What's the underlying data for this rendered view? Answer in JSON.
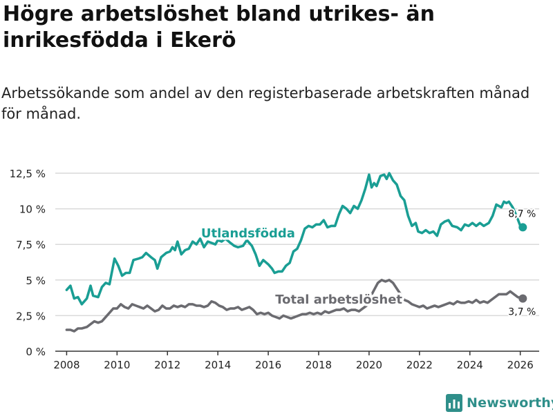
{
  "title": "Högre arbetslöshet bland utrikes- än inrikesfödda i Ekerö",
  "subtitle": "Arbetssökande som andel av den registerbaserade arbetskraften månad för månad.",
  "brand": "Newsworthy",
  "colors": {
    "utlandsfodda": "#1a9e94",
    "total": "#6b6b70",
    "grid": "#d9d9d9",
    "axis": "#333333",
    "brand": "#2f8f8a"
  },
  "chart_data": {
    "type": "line",
    "x_unit": "year",
    "xlim": [
      2007.55,
      2026.75
    ],
    "ylim": [
      0,
      12.5
    ],
    "yticks": [
      {
        "value": 0,
        "label": "0 %"
      },
      {
        "value": 2.5,
        "label": "2,5 %"
      },
      {
        "value": 5,
        "label": "5 %"
      },
      {
        "value": 7.5,
        "label": "7,5 %"
      },
      {
        "value": 10,
        "label": "10 %"
      },
      {
        "value": 12.5,
        "label": "12,5 %"
      }
    ],
    "xticks": [
      {
        "value": 2008,
        "label": "2008"
      },
      {
        "value": 2010,
        "label": "2010"
      },
      {
        "value": 2012,
        "label": "2012"
      },
      {
        "value": 2014,
        "label": "2014"
      },
      {
        "value": 2016,
        "label": "2016"
      },
      {
        "value": 2018,
        "label": "2018"
      },
      {
        "value": 2020,
        "label": "2020"
      },
      {
        "value": 2022,
        "label": "2022"
      },
      {
        "value": 2024,
        "label": "2024"
      },
      {
        "value": 2026,
        "label": "2026"
      }
    ],
    "series": [
      {
        "name": "Utlandsfödda",
        "color": "#1a9e94",
        "end_label": "8,7 %",
        "points": [
          [
            2008.0,
            4.3
          ],
          [
            2008.15,
            4.6
          ],
          [
            2008.3,
            3.7
          ],
          [
            2008.45,
            3.8
          ],
          [
            2008.6,
            3.3
          ],
          [
            2008.8,
            3.7
          ],
          [
            2008.95,
            4.6
          ],
          [
            2009.05,
            3.9
          ],
          [
            2009.25,
            3.8
          ],
          [
            2009.4,
            4.5
          ],
          [
            2009.55,
            4.8
          ],
          [
            2009.7,
            4.7
          ],
          [
            2009.9,
            6.5
          ],
          [
            2010.05,
            6.0
          ],
          [
            2010.2,
            5.3
          ],
          [
            2010.35,
            5.5
          ],
          [
            2010.5,
            5.5
          ],
          [
            2010.65,
            6.4
          ],
          [
            2010.85,
            6.5
          ],
          [
            2011.0,
            6.6
          ],
          [
            2011.15,
            6.9
          ],
          [
            2011.35,
            6.6
          ],
          [
            2011.5,
            6.4
          ],
          [
            2011.6,
            5.8
          ],
          [
            2011.75,
            6.6
          ],
          [
            2011.95,
            6.9
          ],
          [
            2012.1,
            7.0
          ],
          [
            2012.2,
            7.3
          ],
          [
            2012.3,
            7.1
          ],
          [
            2012.4,
            7.7
          ],
          [
            2012.55,
            6.8
          ],
          [
            2012.7,
            7.1
          ],
          [
            2012.85,
            7.2
          ],
          [
            2013.0,
            7.7
          ],
          [
            2013.15,
            7.5
          ],
          [
            2013.3,
            7.9
          ],
          [
            2013.45,
            7.3
          ],
          [
            2013.6,
            7.7
          ],
          [
            2013.75,
            7.6
          ],
          [
            2013.9,
            7.5
          ],
          [
            2014.0,
            7.8
          ],
          [
            2014.15,
            7.7
          ],
          [
            2014.3,
            7.9
          ],
          [
            2014.5,
            7.6
          ],
          [
            2014.65,
            7.4
          ],
          [
            2014.8,
            7.3
          ],
          [
            2015.0,
            7.4
          ],
          [
            2015.15,
            7.8
          ],
          [
            2015.35,
            7.4
          ],
          [
            2015.5,
            6.8
          ],
          [
            2015.65,
            6.0
          ],
          [
            2015.8,
            6.4
          ],
          [
            2016.0,
            6.1
          ],
          [
            2016.15,
            5.8
          ],
          [
            2016.25,
            5.5
          ],
          [
            2016.4,
            5.6
          ],
          [
            2016.55,
            5.6
          ],
          [
            2016.7,
            6.0
          ],
          [
            2016.85,
            6.2
          ],
          [
            2017.0,
            7.0
          ],
          [
            2017.15,
            7.2
          ],
          [
            2017.3,
            7.8
          ],
          [
            2017.45,
            8.6
          ],
          [
            2017.6,
            8.8
          ],
          [
            2017.75,
            8.7
          ],
          [
            2017.9,
            8.9
          ],
          [
            2018.05,
            8.9
          ],
          [
            2018.2,
            9.2
          ],
          [
            2018.35,
            8.7
          ],
          [
            2018.5,
            8.8
          ],
          [
            2018.65,
            8.8
          ],
          [
            2018.8,
            9.6
          ],
          [
            2018.95,
            10.2
          ],
          [
            2019.1,
            10.0
          ],
          [
            2019.25,
            9.7
          ],
          [
            2019.4,
            10.2
          ],
          [
            2019.55,
            10.0
          ],
          [
            2019.7,
            10.6
          ],
          [
            2019.85,
            11.4
          ],
          [
            2020.0,
            12.4
          ],
          [
            2020.1,
            11.5
          ],
          [
            2020.2,
            11.8
          ],
          [
            2020.3,
            11.6
          ],
          [
            2020.45,
            12.3
          ],
          [
            2020.6,
            12.4
          ],
          [
            2020.7,
            12.1
          ],
          [
            2020.8,
            12.5
          ],
          [
            2020.95,
            12.0
          ],
          [
            2021.1,
            11.7
          ],
          [
            2021.25,
            10.9
          ],
          [
            2021.4,
            10.6
          ],
          [
            2021.55,
            9.5
          ],
          [
            2021.7,
            8.8
          ],
          [
            2021.85,
            9.0
          ],
          [
            2021.95,
            8.4
          ],
          [
            2022.1,
            8.3
          ],
          [
            2022.25,
            8.5
          ],
          [
            2022.4,
            8.3
          ],
          [
            2022.55,
            8.4
          ],
          [
            2022.7,
            8.1
          ],
          [
            2022.85,
            8.9
          ],
          [
            2023.0,
            9.1
          ],
          [
            2023.15,
            9.2
          ],
          [
            2023.3,
            8.8
          ],
          [
            2023.5,
            8.7
          ],
          [
            2023.65,
            8.5
          ],
          [
            2023.8,
            8.9
          ],
          [
            2023.95,
            8.8
          ],
          [
            2024.1,
            9.0
          ],
          [
            2024.25,
            8.8
          ],
          [
            2024.4,
            9.0
          ],
          [
            2024.55,
            8.8
          ],
          [
            2024.75,
            9.0
          ],
          [
            2024.9,
            9.5
          ],
          [
            2025.05,
            10.3
          ],
          [
            2025.15,
            10.2
          ],
          [
            2025.25,
            10.1
          ],
          [
            2025.35,
            10.5
          ],
          [
            2025.45,
            10.4
          ],
          [
            2025.55,
            10.5
          ],
          [
            2025.7,
            10.1
          ],
          [
            2025.85,
            9.5
          ],
          [
            2026.0,
            8.8
          ],
          [
            2026.1,
            8.7
          ]
        ]
      },
      {
        "name": "Total arbetslöshet",
        "color": "#6b6b70",
        "end_label": "3,7 %",
        "points": [
          [
            2008.0,
            1.5
          ],
          [
            2008.15,
            1.5
          ],
          [
            2008.3,
            1.4
          ],
          [
            2008.45,
            1.6
          ],
          [
            2008.6,
            1.6
          ],
          [
            2008.8,
            1.7
          ],
          [
            2008.95,
            1.9
          ],
          [
            2009.1,
            2.1
          ],
          [
            2009.25,
            2.0
          ],
          [
            2009.4,
            2.1
          ],
          [
            2009.55,
            2.4
          ],
          [
            2009.7,
            2.7
          ],
          [
            2009.85,
            3.0
          ],
          [
            2010.0,
            3.0
          ],
          [
            2010.15,
            3.3
          ],
          [
            2010.3,
            3.1
          ],
          [
            2010.45,
            3.0
          ],
          [
            2010.6,
            3.3
          ],
          [
            2010.75,
            3.2
          ],
          [
            2010.9,
            3.1
          ],
          [
            2011.05,
            3.0
          ],
          [
            2011.2,
            3.2
          ],
          [
            2011.35,
            3.0
          ],
          [
            2011.5,
            2.8
          ],
          [
            2011.65,
            2.9
          ],
          [
            2011.8,
            3.2
          ],
          [
            2011.95,
            3.0
          ],
          [
            2012.1,
            3.0
          ],
          [
            2012.25,
            3.2
          ],
          [
            2012.4,
            3.1
          ],
          [
            2012.55,
            3.2
          ],
          [
            2012.7,
            3.1
          ],
          [
            2012.85,
            3.3
          ],
          [
            2013.0,
            3.3
          ],
          [
            2013.15,
            3.2
          ],
          [
            2013.3,
            3.2
          ],
          [
            2013.45,
            3.1
          ],
          [
            2013.6,
            3.2
          ],
          [
            2013.75,
            3.5
          ],
          [
            2013.9,
            3.4
          ],
          [
            2014.05,
            3.2
          ],
          [
            2014.2,
            3.1
          ],
          [
            2014.35,
            2.9
          ],
          [
            2014.5,
            3.0
          ],
          [
            2014.65,
            3.0
          ],
          [
            2014.8,
            3.1
          ],
          [
            2014.95,
            2.9
          ],
          [
            2015.1,
            3.0
          ],
          [
            2015.25,
            3.1
          ],
          [
            2015.4,
            2.9
          ],
          [
            2015.55,
            2.6
          ],
          [
            2015.7,
            2.7
          ],
          [
            2015.85,
            2.6
          ],
          [
            2016.0,
            2.7
          ],
          [
            2016.15,
            2.5
          ],
          [
            2016.3,
            2.4
          ],
          [
            2016.45,
            2.3
          ],
          [
            2016.6,
            2.5
          ],
          [
            2016.75,
            2.4
          ],
          [
            2016.9,
            2.3
          ],
          [
            2017.05,
            2.4
          ],
          [
            2017.2,
            2.5
          ],
          [
            2017.35,
            2.6
          ],
          [
            2017.5,
            2.6
          ],
          [
            2017.65,
            2.7
          ],
          [
            2017.8,
            2.6
          ],
          [
            2017.95,
            2.7
          ],
          [
            2018.1,
            2.6
          ],
          [
            2018.25,
            2.8
          ],
          [
            2018.4,
            2.7
          ],
          [
            2018.55,
            2.8
          ],
          [
            2018.7,
            2.9
          ],
          [
            2018.85,
            2.9
          ],
          [
            2019.0,
            3.0
          ],
          [
            2019.15,
            2.8
          ],
          [
            2019.3,
            2.9
          ],
          [
            2019.45,
            2.9
          ],
          [
            2019.6,
            2.8
          ],
          [
            2019.75,
            3.0
          ],
          [
            2019.9,
            3.2
          ],
          [
            2020.05,
            3.8
          ],
          [
            2020.2,
            4.3
          ],
          [
            2020.35,
            4.8
          ],
          [
            2020.5,
            5.0
          ],
          [
            2020.65,
            4.9
          ],
          [
            2020.8,
            5.0
          ],
          [
            2020.95,
            4.8
          ],
          [
            2021.1,
            4.4
          ],
          [
            2021.25,
            4.0
          ],
          [
            2021.4,
            3.6
          ],
          [
            2021.55,
            3.5
          ],
          [
            2021.7,
            3.3
          ],
          [
            2021.85,
            3.2
          ],
          [
            2022.0,
            3.1
          ],
          [
            2022.15,
            3.2
          ],
          [
            2022.3,
            3.0
          ],
          [
            2022.45,
            3.1
          ],
          [
            2022.6,
            3.2
          ],
          [
            2022.75,
            3.1
          ],
          [
            2022.9,
            3.2
          ],
          [
            2023.05,
            3.3
          ],
          [
            2023.2,
            3.4
          ],
          [
            2023.35,
            3.3
          ],
          [
            2023.5,
            3.5
          ],
          [
            2023.65,
            3.4
          ],
          [
            2023.8,
            3.4
          ],
          [
            2023.95,
            3.5
          ],
          [
            2024.1,
            3.4
          ],
          [
            2024.25,
            3.6
          ],
          [
            2024.4,
            3.4
          ],
          [
            2024.55,
            3.5
          ],
          [
            2024.7,
            3.4
          ],
          [
            2024.85,
            3.6
          ],
          [
            2025.0,
            3.8
          ],
          [
            2025.15,
            4.0
          ],
          [
            2025.3,
            4.0
          ],
          [
            2025.45,
            4.0
          ],
          [
            2025.6,
            4.2
          ],
          [
            2025.75,
            4.0
          ],
          [
            2025.9,
            3.8
          ],
          [
            2026.1,
            3.7
          ]
        ]
      }
    ],
    "annotations": [
      {
        "text": "Utlandsfödda",
        "series": "Utlandsfödda",
        "x": 2015.2,
        "y": 8.0
      },
      {
        "text": "Total arbetslöshet",
        "series": "Total arbetslöshet",
        "x": 2018.8,
        "y": 3.35
      }
    ]
  }
}
